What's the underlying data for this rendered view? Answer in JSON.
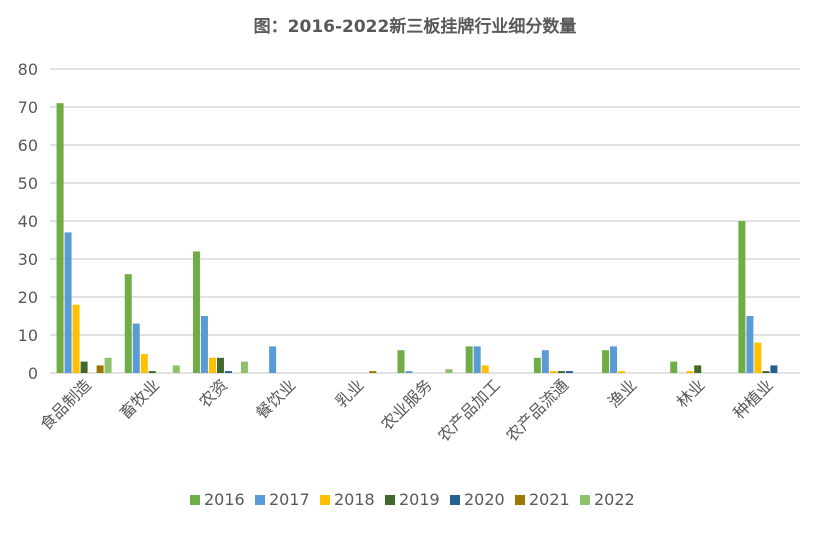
{
  "chart_data": {
    "type": "bar",
    "title": "图：2016-2022新三板挂牌行业细分数量",
    "xlabel": "",
    "ylabel": "",
    "ylim": [
      0,
      80
    ],
    "yticks": [
      0,
      10,
      20,
      30,
      40,
      50,
      60,
      70,
      80
    ],
    "grid": true,
    "legend_position": "bottom",
    "categories": [
      "食品制造",
      "畜牧业",
      "农资",
      "餐饮业",
      "乳业",
      "农业服务",
      "农产品加工",
      "农产品流通",
      "渔业",
      "林业",
      "种植业"
    ],
    "series": [
      {
        "name": "2016",
        "color": "#70AD47",
        "values": [
          71,
          26,
          32,
          0,
          0,
          6,
          7,
          4,
          6,
          3,
          40
        ]
      },
      {
        "name": "2017",
        "color": "#5B9BD5",
        "values": [
          37,
          13,
          15,
          7,
          0,
          0.5,
          7,
          6,
          7,
          0,
          15
        ]
      },
      {
        "name": "2018",
        "color": "#FFC000",
        "values": [
          18,
          5,
          4,
          0,
          0,
          0,
          2,
          0.5,
          0.5,
          0.5,
          8
        ]
      },
      {
        "name": "2019",
        "color": "#43682B",
        "values": [
          3,
          0.5,
          4,
          0,
          0,
          0,
          0,
          0.5,
          0,
          2,
          0.5
        ]
      },
      {
        "name": "2020",
        "color": "#255E91",
        "values": [
          0,
          0,
          0.5,
          0,
          0,
          0,
          0,
          0.5,
          0,
          0,
          2
        ]
      },
      {
        "name": "2021",
        "color": "#9E7700",
        "values": [
          2,
          0,
          0,
          0,
          0.5,
          0,
          0,
          0,
          0,
          0,
          0
        ]
      },
      {
        "name": "2022",
        "color": "#8FC16B",
        "values": [
          4,
          2,
          3,
          0,
          0,
          1,
          0,
          0,
          0,
          0,
          0
        ]
      }
    ]
  }
}
